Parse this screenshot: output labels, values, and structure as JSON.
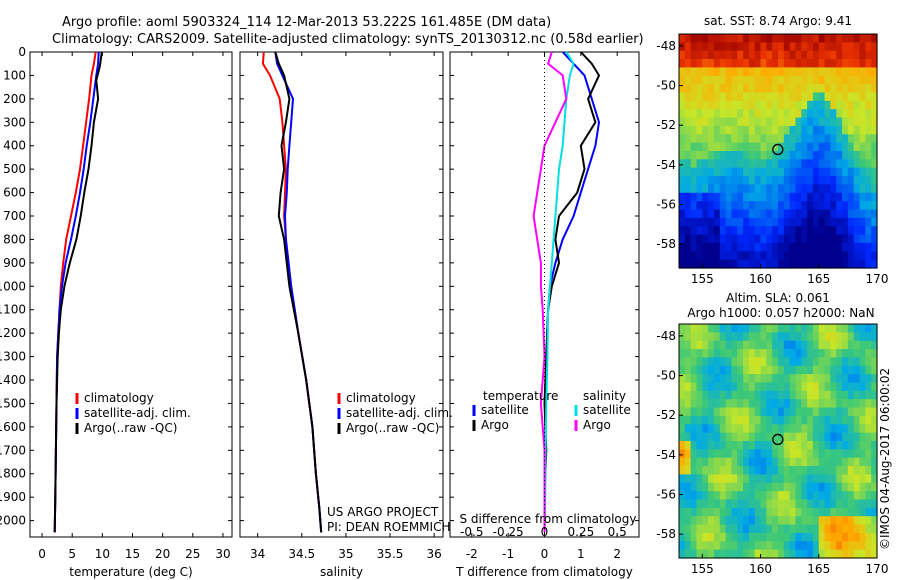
{
  "figure": {
    "title_line1": "Argo profile: aoml 5903324_114 12-Mar-2013 53.222S 161.485E (DM data)",
    "title_line2": "Climatology: CARS2009. Satellite-adjusted climatology: synTS_20130312.nc (0.58d earlier)",
    "credit_line1": "US ARGO PROJECT",
    "credit_line2": "PI: DEAN ROEMMICH",
    "timestamp": "©IMOS 04-Aug-2017 06:00:02"
  },
  "colors": {
    "climatology": "#ff0000",
    "satellite": "#0000ff",
    "argo": "#000000",
    "sal_satellite": "#00e0e0",
    "sal_argo": "#ff00ff"
  },
  "chart_data": [
    {
      "type": "line",
      "xlabel": "temperature (deg C)",
      "ylabel": "",
      "xlim": [
        -2,
        31.5
      ],
      "ylim": [
        2070,
        0
      ],
      "xticks": [
        0,
        5,
        10,
        15,
        20,
        25,
        30
      ],
      "yticks": [
        0,
        100,
        200,
        300,
        400,
        500,
        600,
        700,
        800,
        900,
        1000,
        1100,
        1200,
        1300,
        1400,
        1500,
        1600,
        1700,
        1800,
        1900,
        2000
      ],
      "legend": [
        "climatology",
        "satellite-adj. clim.",
        "Argo(..raw -QC)"
      ],
      "legend_position": "lower-center",
      "series": [
        {
          "name": "climatology",
          "color": "#ff0000",
          "x": [
            8.9,
            8.6,
            8.2,
            7.8,
            7.3,
            6.8,
            6.3,
            5.6,
            4.8,
            4.0,
            3.5,
            3.1,
            2.9,
            2.7,
            2.5,
            2.4,
            2.3,
            2.2,
            2.1
          ],
          "y": [
            0,
            50,
            100,
            200,
            300,
            400,
            500,
            600,
            700,
            800,
            900,
            1000,
            1100,
            1200,
            1300,
            1500,
            1700,
            1900,
            2050
          ]
        },
        {
          "name": "satellite-adj. clim.",
          "color": "#0000ff",
          "x": [
            9.4,
            9.3,
            9.0,
            8.5,
            8.0,
            7.4,
            6.9,
            6.3,
            5.6,
            4.8,
            3.9,
            3.3,
            2.9,
            2.7,
            2.5,
            2.4,
            2.3,
            2.2,
            2.1
          ],
          "y": [
            0,
            50,
            100,
            200,
            300,
            400,
            500,
            600,
            700,
            800,
            900,
            1000,
            1100,
            1200,
            1300,
            1500,
            1700,
            1900,
            2050
          ]
        },
        {
          "name": "Argo(..raw -QC)",
          "color": "#000000",
          "x": [
            9.9,
            9.6,
            9.0,
            9.3,
            8.6,
            8.2,
            7.7,
            7.0,
            6.4,
            5.7,
            4.6,
            3.7,
            3.1,
            2.8,
            2.6,
            2.4,
            2.3,
            2.2,
            2.1
          ],
          "y": [
            0,
            60,
            120,
            200,
            300,
            400,
            500,
            600,
            700,
            800,
            900,
            1000,
            1100,
            1200,
            1300,
            1500,
            1700,
            1900,
            2050
          ]
        }
      ]
    },
    {
      "type": "line",
      "xlabel": "salinity",
      "ylabel": "",
      "xlim": [
        33.8,
        36.1
      ],
      "ylim": [
        2070,
        0
      ],
      "xticks": [
        34,
        34.5,
        35,
        35.5,
        36
      ],
      "legend": [
        "climatology",
        "satellite-adj. clim.",
        "Argo(..raw -QC)"
      ],
      "legend_position": "lower-right",
      "series": [
        {
          "name": "climatology",
          "color": "#ff0000",
          "x": [
            34.07,
            34.06,
            34.14,
            34.25,
            34.28,
            34.3,
            34.32,
            34.31,
            34.3,
            34.32,
            34.38,
            34.46,
            34.55,
            34.62,
            34.66,
            34.7,
            34.72
          ],
          "y": [
            0,
            50,
            100,
            200,
            300,
            400,
            500,
            600,
            700,
            800,
            1000,
            1200,
            1400,
            1600,
            1800,
            1950,
            2050
          ]
        },
        {
          "name": "satellite-adj. clim.",
          "color": "#0000ff",
          "x": [
            34.2,
            34.22,
            34.28,
            34.4,
            34.38,
            34.36,
            34.34,
            34.33,
            34.31,
            34.32,
            34.38,
            34.46,
            34.55,
            34.62,
            34.66,
            34.7,
            34.72
          ],
          "y": [
            0,
            50,
            100,
            200,
            300,
            400,
            500,
            600,
            700,
            800,
            1000,
            1200,
            1400,
            1600,
            1800,
            1950,
            2050
          ]
        },
        {
          "name": "Argo(..raw -QC)",
          "color": "#000000",
          "x": [
            34.2,
            34.24,
            34.3,
            34.36,
            34.32,
            34.27,
            34.3,
            34.26,
            34.24,
            34.3,
            34.36,
            34.46,
            34.55,
            34.62,
            34.66,
            34.7,
            34.72
          ],
          "y": [
            0,
            50,
            100,
            200,
            300,
            400,
            500,
            600,
            700,
            800,
            1000,
            1200,
            1400,
            1600,
            1800,
            1950,
            2050
          ]
        }
      ]
    },
    {
      "type": "line",
      "xlabel": "T difference from climatology",
      "xlabel_top": "S difference from climatology",
      "ylabel": "",
      "xlim": [
        -2.6,
        2.6
      ],
      "ylim": [
        2070,
        0
      ],
      "xticks": [
        -2,
        -1,
        0,
        1,
        2
      ],
      "xticks_s_labels": [
        "-0.5",
        "-0.25",
        "0",
        "0.25",
        "0.5"
      ],
      "legend_headers": [
        "temperature",
        "salinity"
      ],
      "legend": [
        "satellite",
        "Argo",
        "satellite",
        "Argo"
      ],
      "legend_position": "lower-center",
      "series": [
        {
          "name": "satellite",
          "group": "temperature",
          "color": "#0000ff",
          "x": [
            0.5,
            0.8,
            1.1,
            1.3,
            1.5,
            1.4,
            1.2,
            1.0,
            0.8,
            0.5,
            0.3,
            0.15,
            0.1,
            0.05,
            0.03,
            0.02,
            0.01,
            0.0
          ],
          "y": [
            0,
            50,
            100,
            200,
            300,
            400,
            500,
            600,
            700,
            800,
            900,
            1000,
            1100,
            1300,
            1500,
            1700,
            1900,
            2050
          ]
        },
        {
          "name": "Argo",
          "group": "temperature",
          "color": "#000000",
          "x": [
            1.0,
            1.3,
            1.5,
            1.2,
            1.4,
            1.0,
            1.1,
            0.9,
            0.4,
            0.3,
            0.4,
            0.2,
            0.1,
            0.05,
            0.0,
            0.05,
            0.0,
            0.0
          ],
          "y": [
            0,
            50,
            100,
            200,
            300,
            400,
            500,
            600,
            700,
            800,
            900,
            1000,
            1100,
            1300,
            1500,
            1700,
            1900,
            2050
          ]
        },
        {
          "name": "satellite",
          "group": "salinity",
          "color": "#00e0e0",
          "x": [
            0.6,
            0.8,
            0.7,
            0.6,
            0.55,
            0.5,
            0.4,
            0.35,
            0.3,
            0.25,
            0.2,
            0.15,
            0.1,
            0.08,
            0.05,
            0.03,
            0.02,
            0.0
          ],
          "y": [
            0,
            50,
            100,
            200,
            300,
            400,
            500,
            600,
            700,
            800,
            900,
            1000,
            1100,
            1300,
            1500,
            1700,
            1900,
            2050
          ]
        },
        {
          "name": "Argo",
          "group": "salinity",
          "color": "#ff00ff",
          "x": [
            0.2,
            0.1,
            0.5,
            0.6,
            0.3,
            0.0,
            -0.1,
            -0.2,
            -0.3,
            -0.2,
            -0.1,
            -0.1,
            -0.05,
            0.0,
            -0.1,
            0.0,
            0.0,
            0.0
          ],
          "y": [
            0,
            50,
            100,
            200,
            300,
            400,
            500,
            600,
            700,
            800,
            900,
            1000,
            1100,
            1300,
            1500,
            1700,
            1900,
            2050
          ]
        }
      ]
    },
    {
      "type": "heatmap",
      "title": "sat. SST: 8.74  Argo: 9.41",
      "xlim": [
        153,
        170
      ],
      "ylim": [
        -59.2,
        -47.4
      ],
      "xticks": [
        155,
        160,
        165,
        170
      ],
      "yticks": [
        -48,
        -50,
        -52,
        -54,
        -56,
        -58
      ],
      "profile_marker": {
        "lon": 161.485,
        "lat": -53.222
      }
    },
    {
      "type": "heatmap",
      "title": "Altim. SLA: 0.061",
      "subtitle": "Argo h1000: 0.057 h2000: NaN",
      "xlim": [
        153,
        170
      ],
      "ylim": [
        -59.2,
        -47.4
      ],
      "xticks": [
        155,
        160,
        165,
        170
      ],
      "yticks": [
        -48,
        -50,
        -52,
        -54,
        -56,
        -58
      ],
      "profile_marker": {
        "lon": 161.485,
        "lat": -53.222
      }
    }
  ]
}
